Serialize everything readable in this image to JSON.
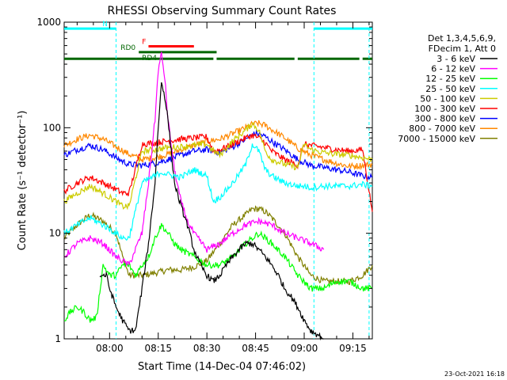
{
  "chart_data": {
    "type": "line",
    "title": "RHESSI Observing Summary Count Rates",
    "xlabel": "Start Time (14-Dec-04 07:46:02)",
    "ylabel": "Count Rate (s⁻¹ detector⁻¹)",
    "x_range_minutes": [
      0,
      95
    ],
    "x_ticks": [
      {
        "minute": 14,
        "label": "08:00"
      },
      {
        "minute": 29,
        "label": "08:15"
      },
      {
        "minute": 44,
        "label": "08:30"
      },
      {
        "minute": 59,
        "label": "08:45"
      },
      {
        "minute": 74,
        "label": "09:00"
      },
      {
        "minute": 89,
        "label": "09:15"
      }
    ],
    "y_scale": "log",
    "ylim": [
      1,
      1000
    ],
    "y_ticks": [
      {
        "value": 1,
        "label": "1"
      },
      {
        "value": 10,
        "label": "10"
      },
      {
        "value": 100,
        "label": "100"
      },
      {
        "value": 1000,
        "label": "1000"
      }
    ],
    "legend_header": [
      "Det 1,3,4,5,6,9,",
      "FDecim 1, Att 0"
    ],
    "legend_position": "right",
    "flags": [
      {
        "label": "N",
        "color": "#00ffff",
        "segments": [
          [
            0,
            16
          ],
          [
            77,
            95
          ]
        ],
        "level": 870
      },
      {
        "label": "F",
        "color": "#ff0000",
        "segments": [
          [
            26,
            40
          ]
        ],
        "level": 590
      },
      {
        "label": "RD0",
        "color": "#006600",
        "segments": [
          [
            23,
            47
          ]
        ],
        "level": 520
      },
      {
        "label": "RD4",
        "color": "#006600",
        "segments": [
          [
            0,
            46
          ],
          [
            47,
            71
          ],
          [
            72,
            91
          ],
          [
            92,
            95
          ]
        ],
        "level": 450
      }
    ],
    "cyan_dashed_markers_minutes": [
      16,
      77,
      94
    ],
    "series": [
      {
        "name": "3 - 6 keV",
        "color": "#000000",
        "x": [
          11,
          13,
          14,
          16,
          18,
          20,
          22,
          24,
          26,
          28,
          29,
          30,
          31,
          32,
          33,
          34,
          36,
          38,
          40,
          42,
          44,
          46,
          48,
          50,
          52,
          54,
          56,
          58,
          60,
          62,
          64,
          66,
          68,
          70,
          72,
          74,
          76,
          78,
          80
        ],
        "y": [
          4,
          4,
          3,
          2,
          1.5,
          1.2,
          1.2,
          3,
          8,
          30,
          100,
          270,
          200,
          120,
          60,
          30,
          18,
          12,
          7,
          5,
          4,
          3.5,
          4,
          5,
          6,
          7,
          8,
          8,
          7,
          6,
          5,
          4,
          3,
          2.5,
          2,
          1.5,
          1.2,
          1.1,
          1
        ]
      },
      {
        "name": "6 - 12 keV",
        "color": "#ff00ff",
        "x": [
          0,
          4,
          8,
          12,
          16,
          20,
          24,
          26,
          28,
          29,
          30,
          31,
          32,
          34,
          36,
          38,
          40,
          44,
          48,
          52,
          56,
          60,
          64,
          68,
          72,
          76,
          80
        ],
        "y": [
          6,
          8,
          9,
          8,
          6,
          5,
          10,
          30,
          120,
          350,
          500,
          300,
          120,
          40,
          20,
          13,
          10,
          7,
          8,
          10,
          12,
          13,
          12,
          10,
          9,
          8,
          7
        ]
      },
      {
        "name": "12 - 25 keV",
        "color": "#00ff00",
        "x": [
          0,
          2,
          4,
          6,
          8,
          10,
          12,
          14,
          16,
          18,
          20,
          22,
          24,
          26,
          28,
          30,
          32,
          34,
          36,
          40,
          44,
          48,
          52,
          56,
          58,
          60,
          62,
          64,
          68,
          72,
          76,
          80,
          84,
          88,
          92,
          95
        ],
        "y": [
          1.5,
          1.8,
          2,
          1.8,
          1.5,
          1.6,
          5,
          4,
          4,
          5,
          5,
          4,
          5,
          6,
          9,
          12,
          10,
          8,
          7,
          6,
          5,
          5,
          6,
          8,
          9,
          10,
          9,
          8,
          6,
          4,
          3,
          3,
          3.5,
          3.5,
          3,
          3
        ]
      },
      {
        "name": "25 - 50 keV",
        "color": "#00ffff",
        "x": [
          0,
          4,
          8,
          12,
          16,
          18,
          20,
          24,
          28,
          30,
          32,
          36,
          40,
          44,
          46,
          48,
          52,
          56,
          58,
          60,
          62,
          64,
          68,
          72,
          74,
          76,
          80,
          84,
          88,
          92,
          95
        ],
        "y": [
          10,
          12,
          14,
          12,
          10,
          9,
          9,
          30,
          35,
          38,
          36,
          34,
          40,
          35,
          20,
          22,
          30,
          45,
          70,
          60,
          40,
          35,
          30,
          28,
          28,
          27,
          28,
          28,
          28,
          29,
          28
        ]
      },
      {
        "name": "50 - 100 keV",
        "color": "#cccc00",
        "x": [
          0,
          4,
          8,
          12,
          16,
          18,
          20,
          24,
          28,
          32,
          36,
          40,
          44,
          46,
          48,
          52,
          56,
          58,
          60,
          62,
          64,
          68,
          72,
          74,
          76,
          80,
          84,
          88,
          92,
          95
        ],
        "y": [
          20,
          24,
          28,
          24,
          20,
          18,
          18,
          60,
          62,
          65,
          66,
          68,
          70,
          60,
          55,
          75,
          95,
          110,
          95,
          60,
          50,
          45,
          42,
          70,
          62,
          58,
          56,
          55,
          52,
          50
        ]
      },
      {
        "name": "100 - 300 keV",
        "color": "#ff0000",
        "x": [
          0,
          4,
          8,
          12,
          16,
          18,
          20,
          24,
          28,
          32,
          36,
          40,
          44,
          46,
          48,
          52,
          56,
          58,
          60,
          62,
          64,
          68,
          72,
          74,
          76,
          80,
          84,
          88,
          92,
          95
        ],
        "y": [
          25,
          30,
          34,
          30,
          26,
          24,
          24,
          70,
          72,
          75,
          78,
          80,
          82,
          60,
          62,
          70,
          80,
          85,
          80,
          72,
          60,
          50,
          44,
          70,
          68,
          65,
          62,
          60,
          62,
          16
        ]
      },
      {
        "name": "300 - 800 keV",
        "color": "#0000ff",
        "x": [
          0,
          4,
          8,
          12,
          16,
          18,
          20,
          24,
          28,
          32,
          36,
          40,
          44,
          48,
          52,
          56,
          58,
          60,
          62,
          64,
          68,
          72,
          76,
          80,
          84,
          88,
          92,
          95
        ],
        "y": [
          55,
          62,
          68,
          62,
          52,
          48,
          45,
          44,
          46,
          50,
          55,
          60,
          62,
          58,
          66,
          78,
          86,
          88,
          82,
          74,
          62,
          50,
          44,
          42,
          40,
          38,
          35,
          34
        ]
      },
      {
        "name": "800 - 7000 keV",
        "color": "#ff8800",
        "x": [
          0,
          4,
          8,
          12,
          16,
          20,
          24,
          28,
          32,
          36,
          40,
          44,
          48,
          52,
          56,
          58,
          60,
          62,
          64,
          68,
          72,
          76,
          80,
          84,
          88,
          92,
          95
        ],
        "y": [
          68,
          78,
          85,
          78,
          66,
          56,
          50,
          52,
          56,
          62,
          68,
          74,
          78,
          88,
          100,
          108,
          110,
          105,
          96,
          80,
          64,
          55,
          50,
          46,
          43,
          44,
          45
        ]
      },
      {
        "name": "7000 - 15000 keV",
        "color": "#808000",
        "x": [
          0,
          4,
          8,
          12,
          16,
          18,
          20,
          24,
          28,
          32,
          36,
          40,
          44,
          48,
          52,
          56,
          58,
          60,
          62,
          64,
          68,
          72,
          76,
          80,
          84,
          88,
          92,
          95
        ],
        "y": [
          9,
          12,
          15,
          13,
          10,
          6,
          4,
          4,
          4.2,
          4.5,
          4.5,
          4.8,
          5.5,
          8,
          12,
          15,
          17,
          17,
          16,
          14,
          10,
          6,
          4,
          3.5,
          3.5,
          3.5,
          4,
          5
        ]
      }
    ]
  },
  "footer_date": "23-Oct-2021 16:18"
}
